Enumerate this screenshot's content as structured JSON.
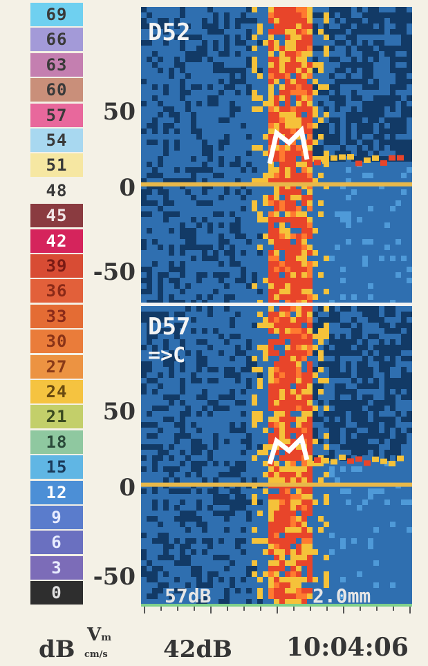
{
  "color_scale": [
    {
      "label": "69",
      "color": "#6fd0f0",
      "text": "#3a3a3a"
    },
    {
      "label": "66",
      "color": "#a39ad8",
      "text": "#3a3a3a"
    },
    {
      "label": "63",
      "color": "#c47fb0",
      "text": "#3a3a3a"
    },
    {
      "label": "60",
      "color": "#c98f7a",
      "text": "#3a3a3a"
    },
    {
      "label": "57",
      "color": "#e8689c",
      "text": "#3a3a3a"
    },
    {
      "label": "54",
      "color": "#a8d8f0",
      "text": "#3a3a3a"
    },
    {
      "label": "51",
      "color": "#f6e7a2",
      "text": "#3a3a3a"
    },
    {
      "label": "48",
      "color": "#f4f1e6",
      "text": "#3a3a3a"
    },
    {
      "label": "45",
      "color": "#8a3b40",
      "text": "#f2e6e6"
    },
    {
      "label": "42",
      "color": "#d5245c",
      "text": "#ffffff"
    },
    {
      "label": "39",
      "color": "#d84c34",
      "text": "#7a1a14"
    },
    {
      "label": "36",
      "color": "#e2603a",
      "text": "#8a2a18"
    },
    {
      "label": "33",
      "color": "#e46c34",
      "text": "#8a2a18"
    },
    {
      "label": "30",
      "color": "#ea7c3a",
      "text": "#8a3418"
    },
    {
      "label": "27",
      "color": "#ec9342",
      "text": "#8a3a18"
    },
    {
      "label": "24",
      "color": "#f5c340",
      "text": "#6a4a10"
    },
    {
      "label": "21",
      "color": "#c3cf6a",
      "text": "#3a4a20"
    },
    {
      "label": "18",
      "color": "#8fc8a0",
      "text": "#2a4a3a"
    },
    {
      "label": "15",
      "color": "#60b6e4",
      "text": "#1a3a5a"
    },
    {
      "label": "12",
      "color": "#4c8fd6",
      "text": "#ffffff"
    },
    {
      "label": "9",
      "color": "#5a7ccc",
      "text": "#e8ecff"
    },
    {
      "label": "6",
      "color": "#6a70c0",
      "text": "#e8ecff"
    },
    {
      "label": "3",
      "color": "#7c6cb8",
      "text": "#e8ecff"
    },
    {
      "label": "0",
      "color": "#2e2e2e",
      "text": "#e0e0e0"
    }
  ],
  "chart_data": [
    {
      "type": "heatmap",
      "annotations": [
        "D52"
      ],
      "yticks": [
        50,
        0,
        -50
      ],
      "ylim": [
        -60,
        90
      ],
      "colors": {
        "background": "#2f6fb0",
        "noise": "#123a66",
        "hot": "#e8452a",
        "warm": "#f5c23a",
        "baseline": "#e8b84a",
        "core": "#ffffff"
      }
    },
    {
      "type": "heatmap",
      "annotations": [
        "D57",
        "=>C"
      ],
      "yticks": [
        50,
        0,
        -50
      ],
      "ylim": [
        -60,
        90
      ],
      "colors": {
        "background": "#2f6fb0",
        "noise": "#123a66",
        "hot": "#e8452a",
        "warm": "#f5c23a",
        "baseline": "#e8b84a",
        "core": "#ffffff"
      }
    }
  ],
  "overlay": {
    "gain_left": "57dB",
    "sample_volume": "2.0mm"
  },
  "footer": {
    "db_label": "dB",
    "vm_label": "V",
    "vm_sub": "m",
    "vm_unit": "cm/s",
    "gain": "42dB",
    "time": "10:04:06"
  }
}
